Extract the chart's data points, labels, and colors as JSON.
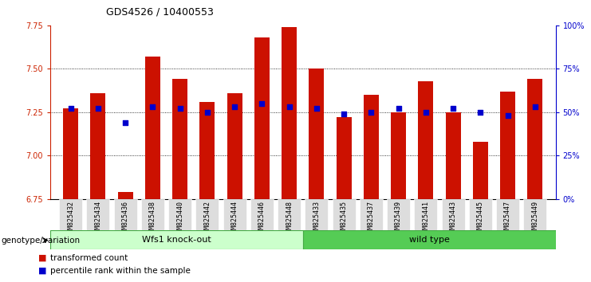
{
  "title": "GDS4526 / 10400553",
  "samples": [
    "GSM825432",
    "GSM825434",
    "GSM825436",
    "GSM825438",
    "GSM825440",
    "GSM825442",
    "GSM825444",
    "GSM825446",
    "GSM825448",
    "GSM825433",
    "GSM825435",
    "GSM825437",
    "GSM825439",
    "GSM825441",
    "GSM825443",
    "GSM825445",
    "GSM825447",
    "GSM825449"
  ],
  "red_values": [
    7.27,
    7.36,
    6.79,
    7.57,
    7.44,
    7.31,
    7.36,
    7.68,
    7.74,
    7.5,
    7.22,
    7.35,
    7.25,
    7.43,
    7.25,
    7.08,
    7.37,
    7.44
  ],
  "blue_values": [
    52,
    52,
    44,
    53,
    52,
    50,
    53,
    55,
    53,
    52,
    49,
    50,
    52,
    50,
    52,
    50,
    48,
    53
  ],
  "ymin": 6.75,
  "ymax": 7.75,
  "yticks": [
    6.75,
    7.0,
    7.25,
    7.5,
    7.75
  ],
  "y2ticks": [
    0,
    25,
    50,
    75,
    100
  ],
  "y2ticklabels": [
    "0%",
    "25%",
    "50%",
    "75%",
    "100%"
  ],
  "group1_label": "Wfs1 knock-out",
  "group2_label": "wild type",
  "group1_count": 9,
  "group2_count": 9,
  "xlabel_left": "genotype/variation",
  "legend_red": "transformed count",
  "legend_blue": "percentile rank within the sample",
  "bar_color": "#cc1100",
  "dot_color": "#0000cc",
  "group1_bg": "#ccffcc",
  "group2_bg": "#55cc55",
  "tick_bg": "#dddddd",
  "bar_width": 0.55,
  "title_fontsize": 9,
  "axis_fontsize": 7,
  "tick_fontsize": 6
}
